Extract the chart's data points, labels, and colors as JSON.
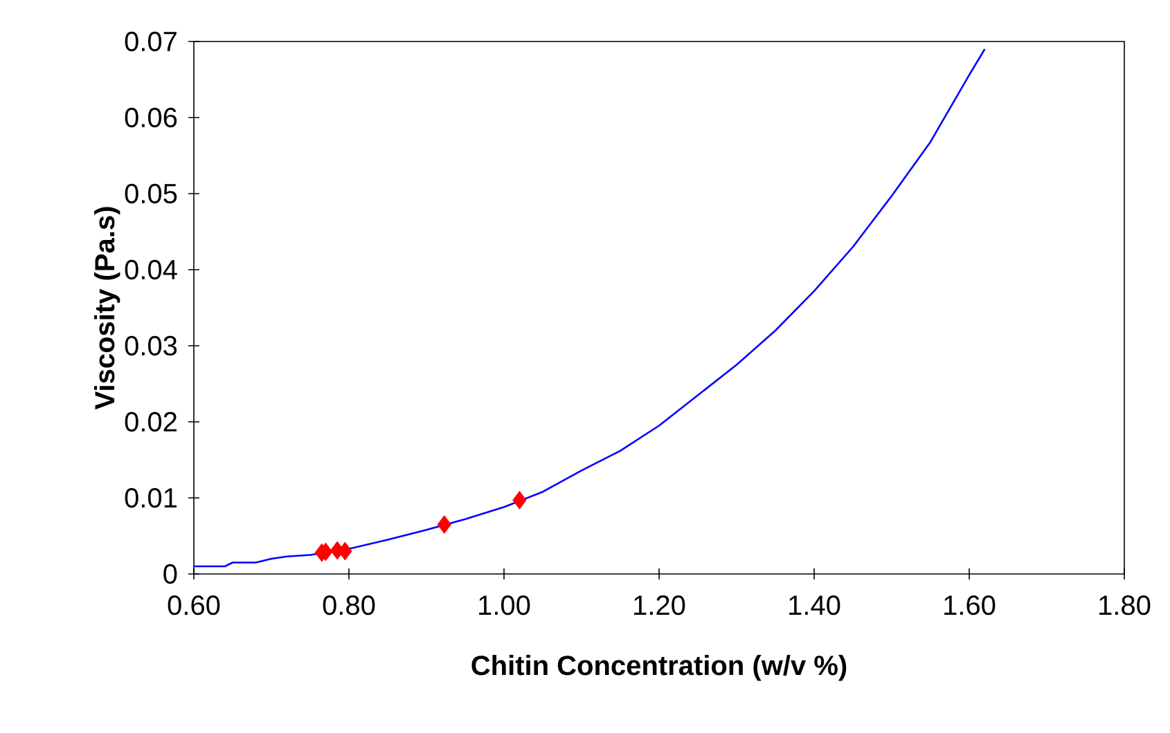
{
  "chart_data": {
    "type": "line",
    "xlabel": "Chitin Concentration  (w/v %)",
    "ylabel": "Viscosity (Pa.s)",
    "xlim": [
      0.6,
      1.8
    ],
    "xticks": [
      {
        "value": 0.6,
        "label": "0.60"
      },
      {
        "value": 0.8,
        "label": "0.80"
      },
      {
        "value": 1.0,
        "label": "1.00"
      },
      {
        "value": 1.2,
        "label": "1.20"
      },
      {
        "value": 1.4,
        "label": "1.40"
      },
      {
        "value": 1.6,
        "label": "1.60"
      },
      {
        "value": 1.8,
        "label": "1.80"
      }
    ],
    "ylim": [
      0,
      0.07
    ],
    "yticks": [
      0,
      0.01,
      0.02,
      0.03,
      0.04,
      0.05,
      0.06,
      0.07
    ],
    "grid": false,
    "series": [
      {
        "color": "#0000ff",
        "marker": "none",
        "line_style": "solid",
        "x": [
          0.6,
          0.64,
          0.65,
          0.68,
          0.7,
          0.72,
          0.75,
          0.8,
          0.85,
          0.9,
          0.95,
          1.0,
          1.05,
          1.1,
          1.15,
          1.2,
          1.25,
          1.3,
          1.35,
          1.4,
          1.45,
          1.5,
          1.55,
          1.6,
          1.62
        ],
        "values": [
          0.001,
          0.001,
          0.0015,
          0.0015,
          0.002,
          0.0023,
          0.0025,
          0.0033,
          0.0045,
          0.0058,
          0.0072,
          0.0088,
          0.0108,
          0.0136,
          0.0162,
          0.0195,
          0.0235,
          0.0275,
          0.032,
          0.0372,
          0.043,
          0.0497,
          0.0568,
          0.0656,
          0.069
        ]
      },
      {
        "type": "scatter",
        "color": "#ff0000",
        "marker": "diamond",
        "x": [
          0.765,
          0.77,
          0.785,
          0.795,
          0.923,
          1.02
        ],
        "values": [
          0.0028,
          0.0029,
          0.0031,
          0.003,
          0.0065,
          0.0097
        ]
      }
    ]
  }
}
